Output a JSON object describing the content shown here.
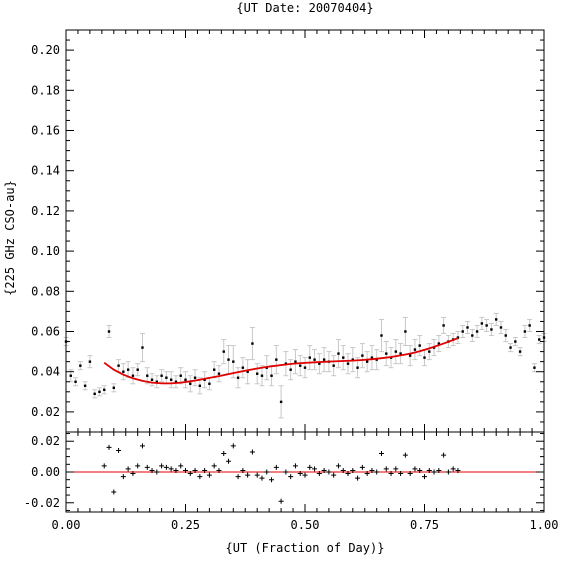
{
  "chart_data": [
    {
      "type": "scatter",
      "title": "{UT Date: 20070404}",
      "ylabel": "{225 GHz CSO-au}",
      "xlim": [
        0.0,
        1.0
      ],
      "ylim": [
        0.01,
        0.21
      ],
      "xticks": [
        "0.00",
        "0.25",
        "0.50",
        "0.75",
        "1.00"
      ],
      "yticks": [
        "0.02",
        "0.04",
        "0.06",
        "0.08",
        "0.10",
        "0.12",
        "0.14",
        "0.16",
        "0.18",
        "0.20"
      ],
      "grid": false,
      "colors": {
        "points": "#000000",
        "errorbars": "#c8c8c8",
        "fit": "#e00000"
      },
      "series": [
        {
          "kind": "points_with_errorbars",
          "x": [
            0.0,
            0.01,
            0.02,
            0.03,
            0.04,
            0.05,
            0.06,
            0.07,
            0.08,
            0.09,
            0.1,
            0.11,
            0.12,
            0.13,
            0.14,
            0.15,
            0.16,
            0.17,
            0.18,
            0.19,
            0.2,
            0.21,
            0.22,
            0.23,
            0.24,
            0.25,
            0.26,
            0.27,
            0.28,
            0.29,
            0.3,
            0.31,
            0.32,
            0.33,
            0.34,
            0.35,
            0.36,
            0.37,
            0.38,
            0.39,
            0.4,
            0.41,
            0.42,
            0.43,
            0.44,
            0.45,
            0.46,
            0.47,
            0.48,
            0.49,
            0.5,
            0.51,
            0.52,
            0.53,
            0.54,
            0.55,
            0.56,
            0.57,
            0.58,
            0.59,
            0.6,
            0.61,
            0.62,
            0.63,
            0.64,
            0.65,
            0.66,
            0.67,
            0.68,
            0.69,
            0.7,
            0.71,
            0.72,
            0.73,
            0.74,
            0.75,
            0.76,
            0.77,
            0.78,
            0.79,
            0.8,
            0.81,
            0.82,
            0.83,
            0.84,
            0.85,
            0.86,
            0.87,
            0.88,
            0.89,
            0.9,
            0.91,
            0.92,
            0.93,
            0.94,
            0.95,
            0.96,
            0.97,
            0.98,
            0.99,
            1.0
          ],
          "y": [
            0.055,
            0.038,
            0.035,
            0.043,
            0.033,
            0.045,
            0.029,
            0.03,
            0.031,
            0.06,
            0.032,
            0.043,
            0.04,
            0.041,
            0.038,
            0.041,
            0.052,
            0.038,
            0.036,
            0.035,
            0.038,
            0.037,
            0.036,
            0.035,
            0.038,
            0.036,
            0.034,
            0.037,
            0.033,
            0.036,
            0.034,
            0.041,
            0.039,
            0.05,
            0.046,
            0.045,
            0.037,
            0.042,
            0.04,
            0.054,
            0.039,
            0.038,
            0.042,
            0.038,
            0.046,
            0.025,
            0.044,
            0.041,
            0.045,
            0.043,
            0.042,
            0.047,
            0.046,
            0.044,
            0.046,
            0.045,
            0.043,
            0.049,
            0.047,
            0.044,
            0.046,
            0.042,
            0.048,
            0.045,
            0.047,
            0.046,
            0.058,
            0.049,
            0.047,
            0.05,
            0.049,
            0.06,
            0.048,
            0.051,
            0.053,
            0.047,
            0.05,
            0.052,
            0.054,
            0.063,
            0.055,
            0.056,
            0.057,
            0.06,
            0.062,
            0.058,
            0.06,
            0.064,
            0.063,
            0.061,
            0.066,
            0.062,
            0.058,
            0.052,
            0.055,
            0.05,
            0.06,
            0.063,
            0.042,
            0.056,
            0.057
          ],
          "err": [
            0.002,
            0.003,
            0.002,
            0.002,
            0.002,
            0.003,
            0.002,
            0.002,
            0.002,
            0.003,
            0.002,
            0.003,
            0.004,
            0.004,
            0.004,
            0.003,
            0.007,
            0.004,
            0.003,
            0.003,
            0.003,
            0.003,
            0.004,
            0.003,
            0.004,
            0.004,
            0.004,
            0.004,
            0.004,
            0.004,
            0.003,
            0.004,
            0.004,
            0.006,
            0.007,
            0.008,
            0.005,
            0.005,
            0.006,
            0.008,
            0.005,
            0.005,
            0.006,
            0.005,
            0.007,
            0.008,
            0.006,
            0.005,
            0.006,
            0.005,
            0.005,
            0.006,
            0.005,
            0.005,
            0.006,
            0.005,
            0.005,
            0.007,
            0.006,
            0.005,
            0.006,
            0.005,
            0.006,
            0.005,
            0.006,
            0.005,
            0.008,
            0.006,
            0.005,
            0.006,
            0.005,
            0.007,
            0.005,
            0.005,
            0.005,
            0.004,
            0.004,
            0.004,
            0.004,
            0.004,
            0.003,
            0.003,
            0.003,
            0.003,
            0.003,
            0.003,
            0.003,
            0.003,
            0.003,
            0.003,
            0.003,
            0.003,
            0.003,
            0.002,
            0.002,
            0.002,
            0.003,
            0.003,
            0.002,
            0.002,
            0.002
          ]
        },
        {
          "kind": "fit_curve",
          "x": [
            0.08,
            0.1,
            0.12,
            0.14,
            0.16,
            0.18,
            0.2,
            0.22,
            0.24,
            0.26,
            0.28,
            0.3,
            0.32,
            0.34,
            0.36,
            0.38,
            0.4,
            0.42,
            0.44,
            0.46,
            0.48,
            0.5,
            0.52,
            0.54,
            0.56,
            0.58,
            0.6,
            0.62,
            0.64,
            0.66,
            0.68,
            0.7,
            0.72,
            0.74,
            0.76,
            0.78,
            0.8,
            0.82
          ],
          "y": [
            0.0445,
            0.041,
            0.0385,
            0.0367,
            0.0354,
            0.0346,
            0.0342,
            0.0342,
            0.0346,
            0.0352,
            0.036,
            0.0369,
            0.0378,
            0.0388,
            0.0398,
            0.0407,
            0.0416,
            0.0424,
            0.043,
            0.0436,
            0.0441,
            0.0444,
            0.0447,
            0.0449,
            0.0451,
            0.0453,
            0.0455,
            0.0458,
            0.0462,
            0.0467,
            0.0473,
            0.0481,
            0.049,
            0.0502,
            0.0516,
            0.0532,
            0.0549,
            0.0567
          ]
        }
      ]
    },
    {
      "type": "scatter",
      "xlabel": "{UT (Fraction of Day)}",
      "xlim": [
        0.0,
        1.0
      ],
      "ylim": [
        -0.026,
        0.026
      ],
      "xticks": [
        "0.00",
        "0.25",
        "0.50",
        "0.75",
        "1.00"
      ],
      "yticks": [
        "-0.02",
        "0.00",
        "0.02"
      ],
      "grid": false,
      "colors": {
        "points": "#000000",
        "zero_line": "#e00000"
      },
      "zero_line": 0.0,
      "series": [
        {
          "kind": "residuals",
          "x": [
            0.08,
            0.09,
            0.1,
            0.11,
            0.12,
            0.13,
            0.14,
            0.15,
            0.16,
            0.17,
            0.18,
            0.19,
            0.2,
            0.21,
            0.22,
            0.23,
            0.24,
            0.25,
            0.26,
            0.27,
            0.28,
            0.29,
            0.3,
            0.31,
            0.32,
            0.33,
            0.34,
            0.35,
            0.36,
            0.37,
            0.38,
            0.39,
            0.4,
            0.41,
            0.42,
            0.43,
            0.44,
            0.45,
            0.46,
            0.47,
            0.48,
            0.49,
            0.5,
            0.51,
            0.52,
            0.53,
            0.54,
            0.55,
            0.56,
            0.57,
            0.58,
            0.59,
            0.6,
            0.61,
            0.62,
            0.63,
            0.64,
            0.65,
            0.66,
            0.67,
            0.68,
            0.69,
            0.7,
            0.71,
            0.72,
            0.73,
            0.74,
            0.75,
            0.76,
            0.77,
            0.78,
            0.79,
            0.8,
            0.81,
            0.82
          ],
          "y": [
            0.004,
            0.016,
            -0.013,
            0.014,
            -0.003,
            0.002,
            -0.001,
            0.004,
            0.017,
            0.003,
            0.001,
            0.0,
            0.004,
            0.003,
            0.002,
            0.001,
            0.004,
            0.001,
            -0.001,
            0.001,
            -0.003,
            0.001,
            -0.002,
            0.004,
            0.001,
            0.012,
            0.007,
            0.017,
            -0.003,
            0.001,
            -0.002,
            0.013,
            -0.002,
            -0.004,
            0.0,
            -0.005,
            0.003,
            -0.019,
            0.0,
            -0.003,
            0.004,
            -0.001,
            -0.002,
            0.003,
            0.002,
            -0.001,
            0.001,
            0.0,
            -0.002,
            0.004,
            0.001,
            -0.001,
            0.001,
            -0.004,
            0.003,
            -0.001,
            0.001,
            0.0,
            0.012,
            0.002,
            -0.001,
            0.002,
            -0.001,
            0.011,
            -0.001,
            0.002,
            0.001,
            -0.003,
            0.001,
            0.0,
            0.001,
            0.011,
            0.0,
            0.002,
            0.001
          ]
        }
      ]
    }
  ]
}
